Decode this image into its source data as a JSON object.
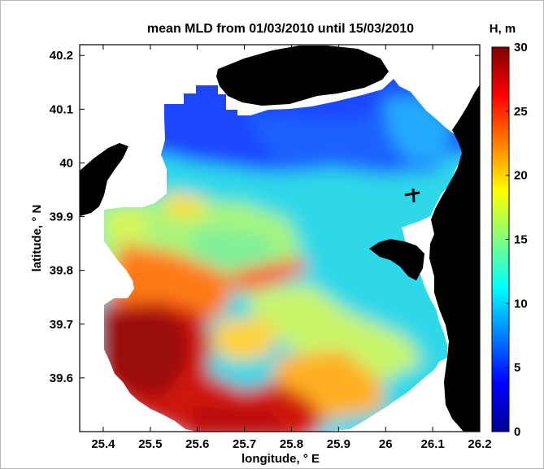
{
  "chart_data": {
    "type": "heatmap",
    "title": "mean MLD from 01/03/2010 until 15/03/2010",
    "xlabel": "longitude, ° E",
    "ylabel": "latitude, ° N",
    "colorbar_label": "H, m",
    "xlim": [
      25.35,
      26.2
    ],
    "ylim": [
      39.5,
      40.22
    ],
    "clim": [
      0,
      30
    ],
    "colormap": "jet",
    "x_ticks": [
      25.4,
      25.5,
      25.6,
      25.7,
      25.8,
      25.9,
      26.0,
      26.1,
      26.2
    ],
    "x_tick_labels": [
      "25.4",
      "25.5",
      "25.6",
      "25.7",
      "25.8",
      "25.9",
      "26",
      "26.1",
      "26.2"
    ],
    "y_ticks": [
      39.6,
      39.7,
      39.8,
      39.9,
      40.0,
      40.1,
      40.2
    ],
    "y_tick_labels": [
      "39.6",
      "39.7",
      "39.8",
      "39.9",
      "40",
      "40.1",
      "40.2"
    ],
    "colorbar_ticks": [
      0,
      5,
      10,
      15,
      20,
      25,
      30
    ],
    "colorbar_tick_labels": [
      "0",
      "5",
      "10",
      "15",
      "20",
      "25",
      "30"
    ],
    "land_color": "#000000",
    "field_regions": [
      {
        "zone": "northern basin",
        "mld_m": 3
      },
      {
        "zone": "central-east",
        "mld_m": 12
      },
      {
        "zone": "central-west",
        "mld_m": 17
      },
      {
        "zone": "southwest shelf",
        "mld_m": 29
      },
      {
        "zone": "south-central",
        "mld_m": 25
      }
    ]
  }
}
